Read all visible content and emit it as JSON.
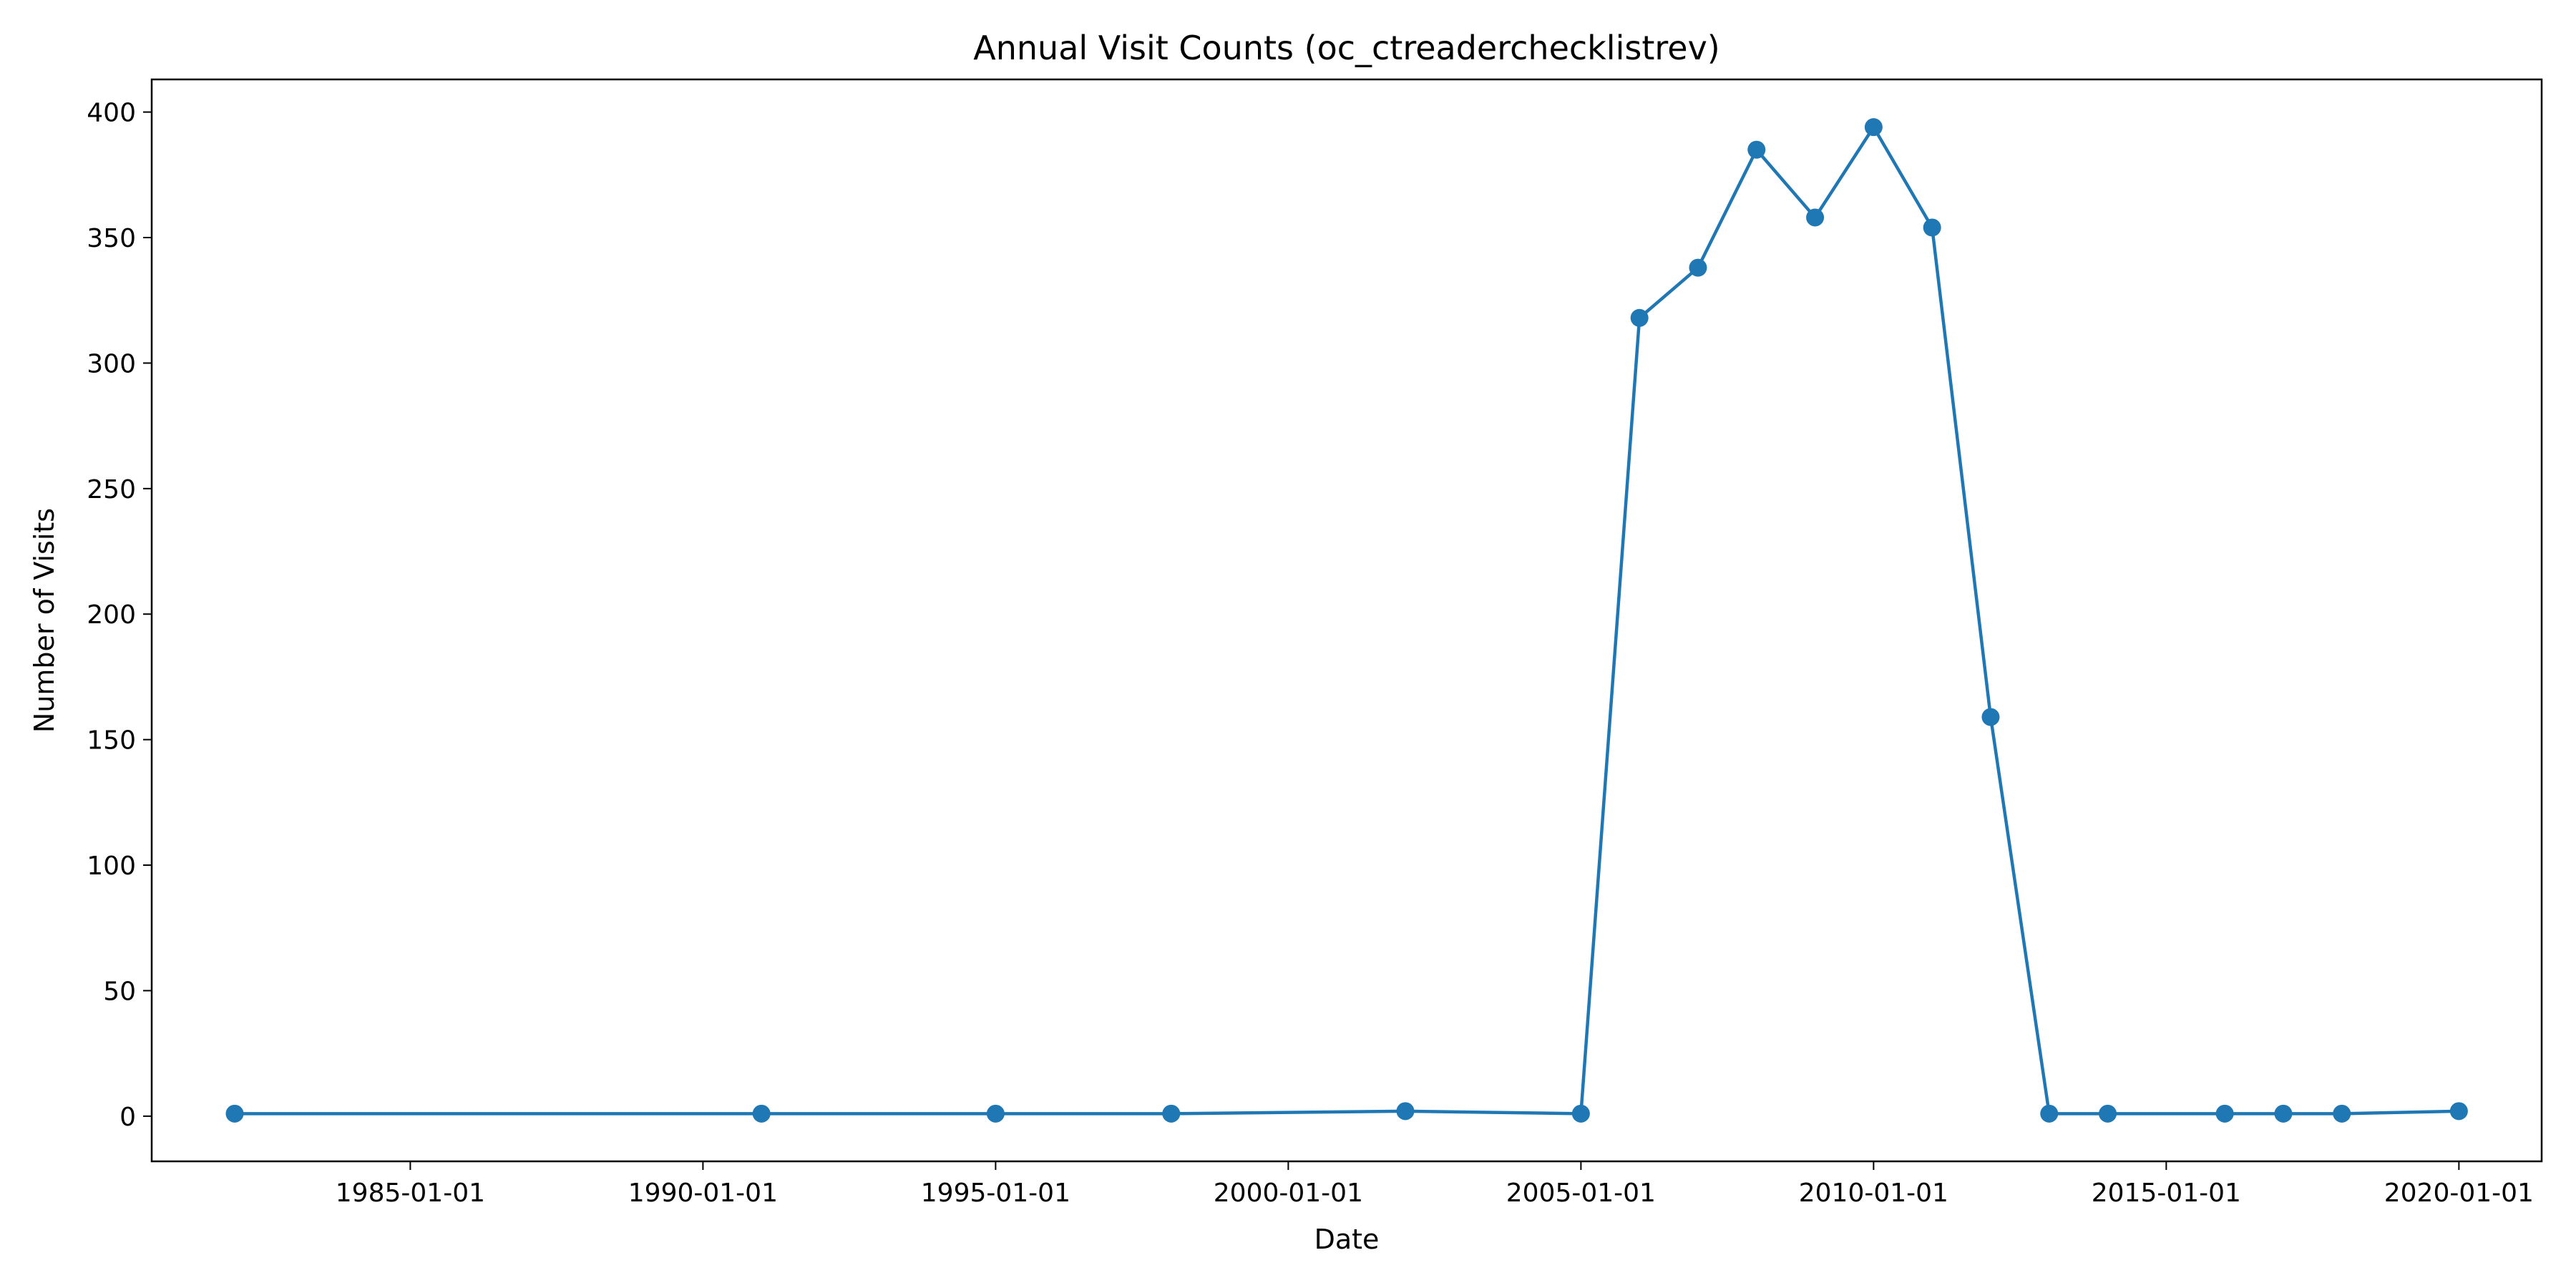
{
  "chart_data": {
    "type": "line",
    "title": "Annual Visit Counts (oc_ctreaderchecklistrev)",
    "xlabel": "Date",
    "ylabel": "Number of Visits",
    "x_tick_labels": [
      "1985-01-01",
      "1990-01-01",
      "1995-01-01",
      "2000-01-01",
      "2005-01-01",
      "2010-01-01",
      "2015-01-01",
      "2020-01-01"
    ],
    "y_tick_labels": [
      "0",
      "50",
      "100",
      "150",
      "200",
      "250",
      "300",
      "350",
      "400"
    ],
    "xlim": [
      "1980-08-01",
      "2021-06-01"
    ],
    "ylim": [
      -18,
      413
    ],
    "grid": false,
    "color": "#1f77b4",
    "marker": "circle",
    "series": [
      {
        "x": [
          "1982-01-01",
          "1991-01-01",
          "1995-01-01",
          "1998-01-01",
          "2002-01-01",
          "2005-01-01",
          "2006-01-01",
          "2007-01-01",
          "2008-01-01",
          "2009-01-01",
          "2010-01-01",
          "2011-01-01",
          "2012-01-01",
          "2013-01-01",
          "2014-01-01",
          "2016-01-01",
          "2017-01-01",
          "2018-01-01",
          "2020-01-01"
        ],
        "values": [
          1,
          1,
          1,
          1,
          2,
          1,
          318,
          338,
          385,
          358,
          394,
          354,
          159,
          1,
          1,
          1,
          1,
          1,
          2
        ]
      }
    ]
  }
}
